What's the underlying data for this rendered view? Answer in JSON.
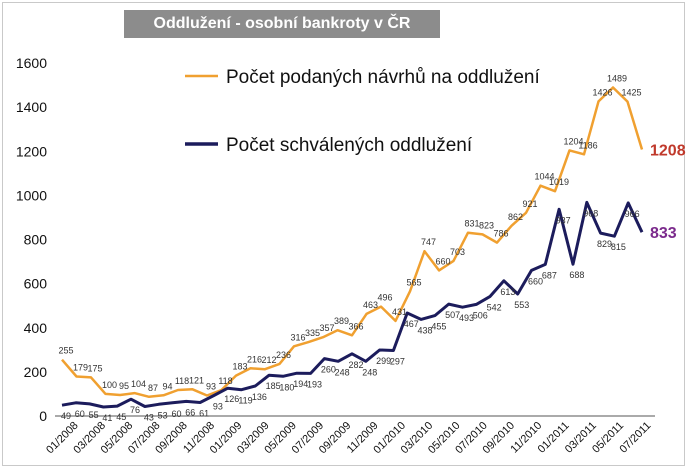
{
  "chart_data": {
    "type": "line",
    "title": "Oddlužení - osobní bankroty v ČR",
    "xlabel": "",
    "ylabel": "",
    "ylim": [
      0,
      1600
    ],
    "yticks": [
      0,
      200,
      400,
      600,
      800,
      1000,
      1200,
      1400,
      1600
    ],
    "grid": "horizontal",
    "legend_position": "top",
    "x_tick_labels": [
      "01/2008",
      "03/2008",
      "05/2008",
      "07/2008",
      "09/2008",
      "11/2008",
      "01/2009",
      "03/2009",
      "05/2009",
      "07/2009",
      "09/2009",
      "11/2009",
      "01/2010",
      "03/2010",
      "05/2010",
      "07/2010",
      "09/2010",
      "11/2010",
      "01/2011",
      "03/2011",
      "05/2011",
      "07/2011"
    ],
    "series": [
      {
        "name": "Počet podaných návrhů na oddlužení",
        "color": "#f0a030",
        "end_label": "1208",
        "end_label_color": "#c0392b",
        "values": [
          255,
          179,
          175,
          100,
          95,
          104,
          87,
          94,
          118,
          121,
          93,
          118,
          183,
          216,
          212,
          236,
          316,
          335,
          357,
          389,
          366,
          463,
          496,
          431,
          565,
          747,
          660,
          703,
          831,
          823,
          786,
          862,
          921,
          1044,
          1019,
          1204,
          1186,
          1426,
          1489,
          1425,
          1208
        ]
      },
      {
        "name": "Počet schválených oddlužení",
        "color": "#1c1c5c",
        "end_label": "833",
        "end_label_color": "#7b2a8c",
        "values": [
          49,
          60,
          55,
          41,
          45,
          76,
          43,
          53,
          60,
          66,
          61,
          93,
          126,
          119,
          136,
          185,
          180,
          194,
          193,
          260,
          248,
          282,
          248,
          299,
          297,
          467,
          438,
          455,
          507,
          493,
          506,
          542,
          613,
          553,
          660,
          687,
          937,
          688,
          968,
          829,
          815,
          966,
          833
        ]
      }
    ],
    "data_labels": {
      "orange": [
        "255",
        "179",
        "175",
        "100",
        "95",
        "104",
        "87",
        "94",
        "118",
        "121",
        "93",
        "118",
        "183",
        "216",
        "212",
        "236",
        "316",
        "335",
        "357",
        "389",
        "366",
        "463",
        "496",
        "431",
        "565",
        "747",
        "660",
        "703",
        "831",
        "823",
        "786",
        "862",
        "921",
        "1044",
        "1019",
        "1204",
        "1186",
        "1426",
        "1489",
        "1425"
      ],
      "navy": [
        "49",
        "60",
        "55",
        "41",
        "45",
        "76",
        "43",
        "53",
        "60",
        "66",
        "61",
        "93",
        "126",
        "119",
        "136",
        "185",
        "180",
        "194",
        "193",
        "260",
        "248",
        "282",
        "248",
        "299",
        "297",
        "467",
        "438",
        "455",
        "507",
        "493",
        "506",
        "542",
        "613",
        "553",
        "660",
        "687",
        "937",
        "688",
        "968",
        "829",
        "815",
        "966"
      ]
    }
  }
}
